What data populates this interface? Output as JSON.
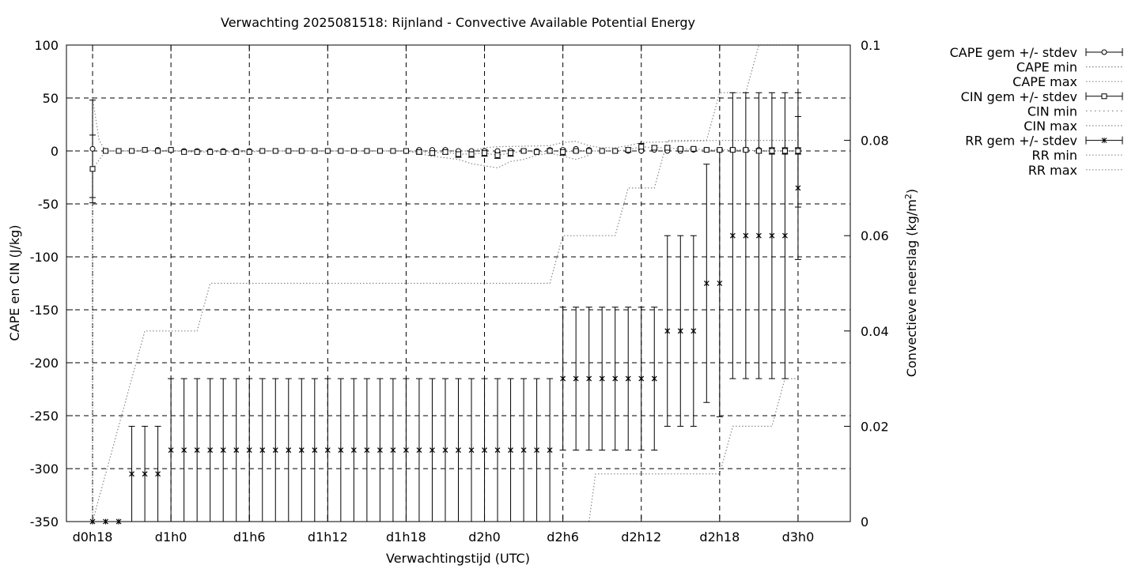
{
  "chart_data": {
    "type": "line",
    "title": "Verwachting 2025081518: Rijnland - Convective Available Potential Energy",
    "xlabel": "Verwachtingstijd (UTC)",
    "ylabel": "CAPE en CIN (J/kg)",
    "y2label_main": "Convectieve neerslag (kg/m",
    "y2label_sup": "2",
    "y2label_end": ")",
    "x_unit": "hours since d0h0",
    "xlim": [
      16,
      76
    ],
    "ylim": [
      -350,
      100
    ],
    "y2lim": [
      0,
      0.1
    ],
    "grid": true,
    "legend_position": "outside-right",
    "x_ticks": [
      {
        "x": 18,
        "label": "d0h18"
      },
      {
        "x": 24,
        "label": "d1h0"
      },
      {
        "x": 30,
        "label": "d1h6"
      },
      {
        "x": 36,
        "label": "d1h12"
      },
      {
        "x": 42,
        "label": "d1h18"
      },
      {
        "x": 48,
        "label": "d2h0"
      },
      {
        "x": 54,
        "label": "d2h6"
      },
      {
        "x": 60,
        "label": "d2h12"
      },
      {
        "x": 66,
        "label": "d2h18"
      },
      {
        "x": 72,
        "label": "d3h0"
      }
    ],
    "y_ticks": [
      {
        "v": 100,
        "label": "100"
      },
      {
        "v": 50,
        "label": "50"
      },
      {
        "v": 0,
        "label": "0"
      },
      {
        "v": -50,
        "label": "-50"
      },
      {
        "v": -100,
        "label": "-100"
      },
      {
        "v": -150,
        "label": "-150"
      },
      {
        "v": -200,
        "label": "-200"
      },
      {
        "v": -250,
        "label": "-250"
      },
      {
        "v": -300,
        "label": "-300"
      },
      {
        "v": -350,
        "label": "-350"
      }
    ],
    "y2_ticks": [
      {
        "v": 0.1,
        "label": "0.1"
      },
      {
        "v": 0.08,
        "label": "0.08"
      },
      {
        "v": 0.06,
        "label": "0.06"
      },
      {
        "v": 0.04,
        "label": "0.04"
      },
      {
        "v": 0.02,
        "label": "0.02"
      },
      {
        "v": 0,
        "label": "0"
      }
    ],
    "legend": [
      {
        "label": "CAPE gem +/- stdev",
        "style": "errorbar",
        "marker": "circle"
      },
      {
        "label": "CAPE min",
        "style": "dotted"
      },
      {
        "label": "CAPE max",
        "style": "dotted"
      },
      {
        "label": "CIN gem +/- stdev",
        "style": "errorbar",
        "marker": "square"
      },
      {
        "label": "CIN min",
        "style": "dotted-sparse"
      },
      {
        "label": "CIN max",
        "style": "dotted"
      },
      {
        "label": "RR gem +/- stdev",
        "style": "errorbar",
        "marker": "star"
      },
      {
        "label": "RR min",
        "style": "dotted"
      },
      {
        "label": "RR max",
        "style": "dotted"
      }
    ],
    "cape_mean": {
      "x": [
        18,
        19,
        20,
        21,
        22,
        23,
        24,
        25,
        26,
        27,
        28,
        29,
        30,
        31,
        32,
        33,
        34,
        35,
        36,
        37,
        38,
        39,
        40,
        41,
        42,
        43,
        44,
        45,
        46,
        47,
        48,
        49,
        50,
        51,
        52,
        53,
        54,
        55,
        56,
        57,
        58,
        59,
        60,
        61,
        62,
        63,
        64,
        65,
        66,
        67,
        68,
        69,
        70,
        71,
        72
      ],
      "y": [
        2,
        0,
        0,
        0,
        1,
        1,
        1,
        0,
        0,
        0,
        0,
        0,
        0,
        0,
        0,
        0,
        0,
        0,
        0,
        0,
        0,
        0,
        0,
        0,
        0,
        1,
        1,
        1,
        0,
        0,
        0,
        0,
        0,
        0,
        0,
        1,
        1,
        2,
        1,
        0,
        0,
        0,
        0,
        1,
        0,
        0,
        1,
        1,
        1,
        1,
        1,
        1,
        1,
        1,
        1
      ],
      "err": [
        46,
        0,
        0,
        0,
        0,
        0,
        0,
        0,
        0,
        0,
        0,
        0,
        0,
        0,
        0,
        0,
        0,
        0,
        0,
        0,
        0,
        0,
        0,
        0,
        0,
        0,
        0,
        0,
        0,
        0,
        0,
        0,
        0,
        0,
        0,
        0,
        0,
        0,
        0,
        0,
        0,
        0,
        0,
        0,
        0,
        0,
        0,
        0,
        0,
        0,
        0,
        0,
        0,
        0,
        54
      ]
    },
    "cin_mean": {
      "x": [
        18,
        19,
        20,
        21,
        22,
        23,
        24,
        25,
        26,
        27,
        28,
        29,
        30,
        31,
        32,
        33,
        34,
        35,
        36,
        37,
        38,
        39,
        40,
        41,
        42,
        43,
        44,
        45,
        46,
        47,
        48,
        49,
        50,
        51,
        52,
        53,
        54,
        55,
        56,
        57,
        58,
        59,
        60,
        61,
        62,
        63,
        64,
        65,
        66,
        67,
        68,
        69,
        70,
        71,
        72
      ],
      "y": [
        -17,
        0,
        0,
        0,
        1,
        0,
        1,
        -1,
        -1,
        -1,
        -1,
        -1,
        -1,
        0,
        0,
        0,
        0,
        0,
        0,
        0,
        0,
        0,
        0,
        0,
        0,
        -1,
        -2,
        -1,
        -3,
        -3,
        -2,
        -4,
        -2,
        0,
        -1,
        0,
        -1,
        0,
        0,
        0,
        0,
        1,
        4,
        3,
        3,
        2,
        2,
        1,
        1,
        1,
        1,
        0,
        0,
        0,
        0
      ],
      "err": [
        32,
        0,
        0,
        0,
        0,
        0,
        0,
        0,
        0,
        0,
        0,
        0,
        0,
        0,
        0,
        0,
        0,
        0,
        0,
        0,
        0,
        0,
        0,
        0,
        0,
        2,
        2,
        2,
        3,
        3,
        3,
        3,
        3,
        1,
        1,
        2,
        3,
        1,
        0,
        0,
        0,
        2,
        3,
        2,
        2,
        1,
        1,
        1,
        1,
        1,
        1,
        2,
        3,
        3,
        3
      ]
    },
    "cape_max": {
      "x": [
        18,
        18.5,
        19,
        20,
        47,
        48,
        49,
        53,
        54,
        55,
        56,
        57,
        58,
        59,
        60,
        66,
        67,
        68,
        72
      ],
      "y": [
        50,
        10,
        0,
        0,
        0,
        3,
        4,
        5,
        8,
        9,
        5,
        3,
        3,
        5,
        8,
        10,
        10,
        10,
        10
      ]
    },
    "cin_min_x": [
      18,
      18,
      18,
      18,
      18,
      18,
      18,
      18,
      18,
      18,
      18
    ],
    "cin_min_y": [
      -350,
      -300,
      -250,
      -200,
      -150,
      -100,
      -50,
      -20,
      0,
      20,
      48
    ],
    "cin_min": {
      "x": [
        42,
        44,
        46,
        47,
        48,
        49,
        50,
        51,
        52,
        53,
        54,
        55,
        56
      ],
      "y": [
        0,
        -5,
        -8,
        -12,
        -14,
        -16,
        -10,
        -8,
        -4,
        -2,
        -5,
        -8,
        -4
      ]
    },
    "rr_min": {
      "x": [
        56,
        56.5,
        58,
        62,
        64,
        65,
        66,
        67,
        68,
        70,
        71,
        72
      ],
      "y2": [
        0,
        0.01,
        0.01,
        0.01,
        0.01,
        0.01,
        0.01,
        0.02,
        0.02,
        0.02,
        0.03,
        0.03
      ]
    },
    "rr_max": {
      "x": [
        18,
        22,
        23,
        26,
        27,
        34,
        35,
        53,
        54,
        55,
        56,
        58,
        59,
        60,
        61,
        62,
        63,
        64,
        65,
        66,
        67,
        68,
        69,
        70,
        71,
        72
      ],
      "y2": [
        0,
        0.04,
        0.04,
        0.04,
        0.05,
        0.05,
        0.05,
        0.05,
        0.06,
        0.06,
        0.06,
        0.06,
        0.07,
        0.07,
        0.07,
        0.08,
        0.08,
        0.08,
        0.08,
        0.09,
        0.09,
        0.09,
        0.1,
        0.1,
        0.1,
        0.1
      ]
    },
    "rr_mean": {
      "x": [
        18,
        19,
        20,
        21,
        22,
        23,
        24,
        25,
        26,
        27,
        28,
        29,
        30,
        31,
        32,
        33,
        34,
        35,
        36,
        37,
        38,
        39,
        40,
        41,
        42,
        43,
        44,
        45,
        46,
        47,
        48,
        49,
        50,
        51,
        52,
        53,
        54,
        55,
        56,
        57,
        58,
        59,
        60,
        61,
        62,
        63,
        64,
        65,
        66,
        67,
        68,
        69,
        70,
        71,
        72
      ],
      "y2": [
        0,
        0,
        0,
        0.01,
        0.01,
        0.01,
        0.015,
        0.015,
        0.015,
        0.015,
        0.015,
        0.015,
        0.015,
        0.015,
        0.015,
        0.015,
        0.015,
        0.015,
        0.015,
        0.015,
        0.015,
        0.015,
        0.015,
        0.015,
        0.015,
        0.015,
        0.015,
        0.015,
        0.015,
        0.015,
        0.015,
        0.015,
        0.015,
        0.015,
        0.015,
        0.015,
        0.03,
        0.03,
        0.03,
        0.03,
        0.03,
        0.03,
        0.03,
        0.03,
        0.04,
        0.04,
        0.04,
        0.05,
        0.05,
        0.06,
        0.06,
        0.06,
        0.06,
        0.06,
        0.07
      ],
      "err": [
        0,
        0,
        0,
        0.01,
        0.01,
        0.01,
        0.015,
        0.015,
        0.015,
        0.015,
        0.015,
        0.015,
        0.015,
        0.015,
        0.015,
        0.015,
        0.015,
        0.015,
        0.015,
        0.015,
        0.015,
        0.015,
        0.015,
        0.015,
        0.015,
        0.015,
        0.015,
        0.015,
        0.015,
        0.015,
        0.015,
        0.015,
        0.015,
        0.015,
        0.015,
        0.015,
        0.015,
        0.015,
        0.015,
        0.015,
        0.015,
        0.015,
        0.015,
        0.015,
        0.02,
        0.02,
        0.02,
        0.025,
        0.028,
        0.03,
        0.03,
        0.03,
        0.03,
        0.03,
        0.015
      ]
    }
  }
}
